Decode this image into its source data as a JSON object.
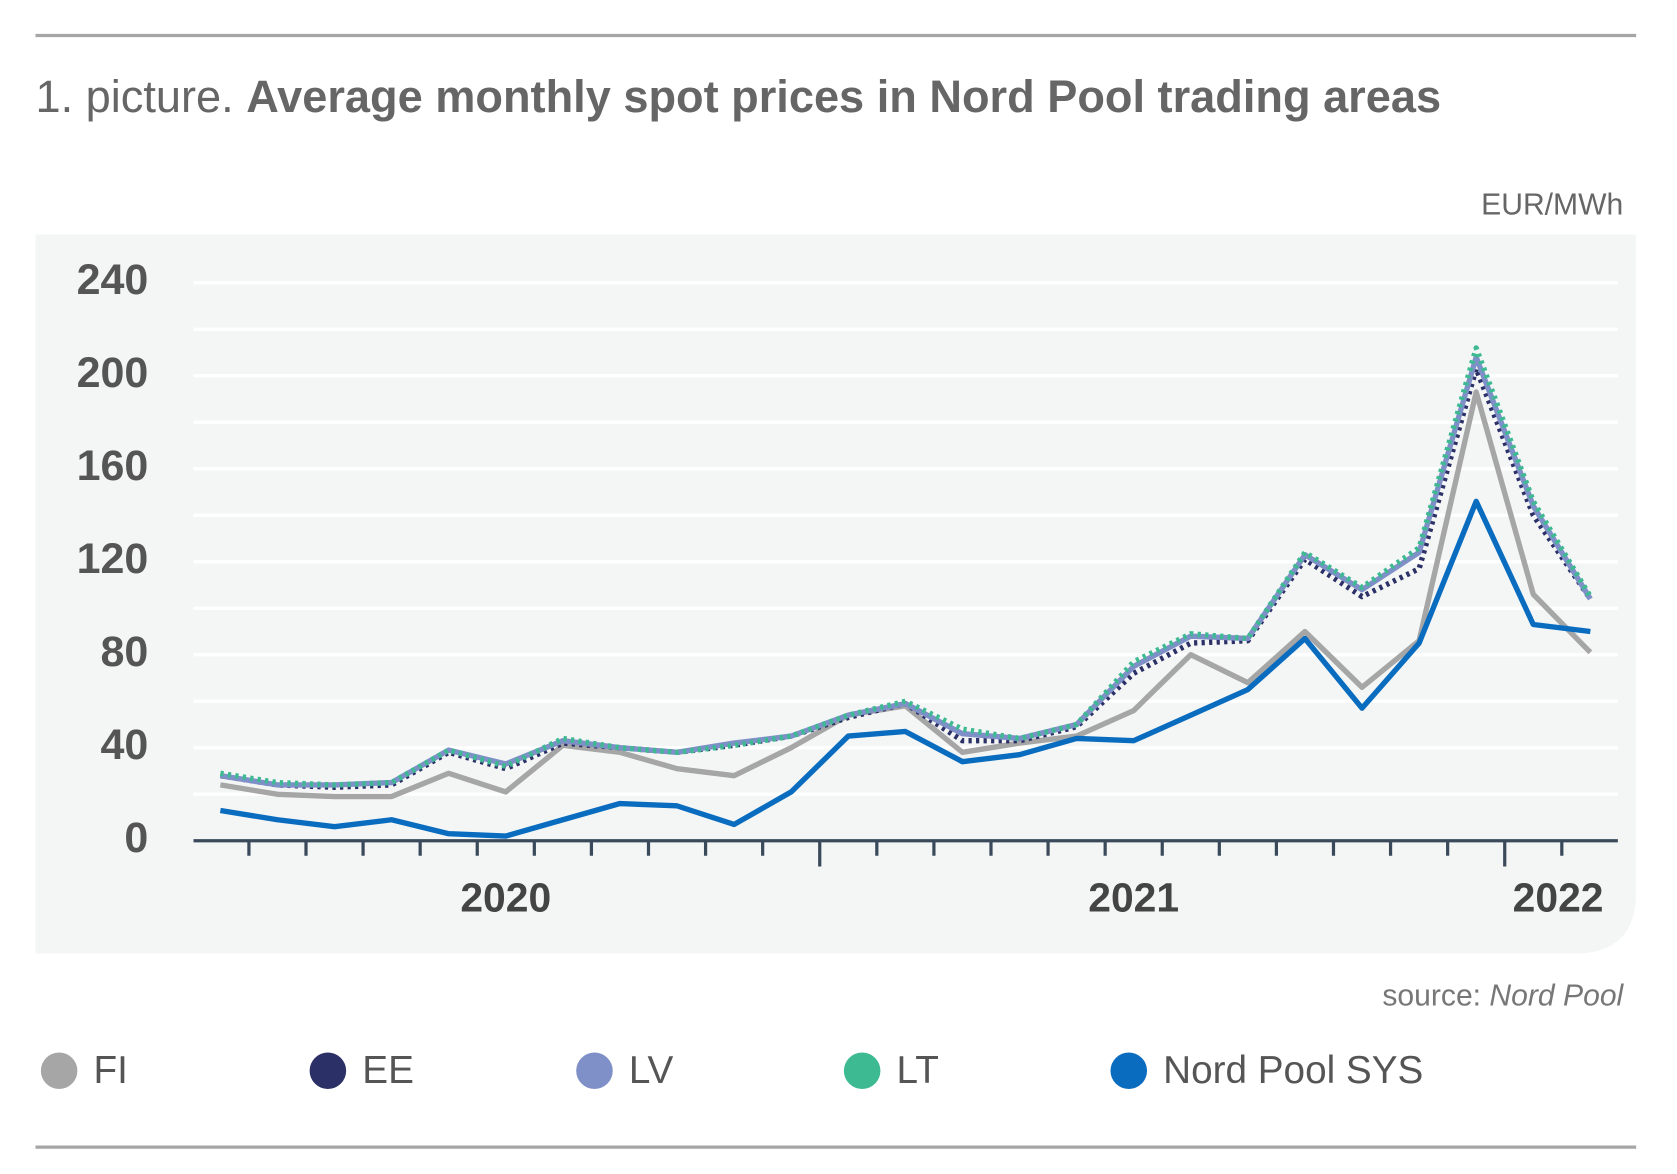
{
  "chart_data": {
    "type": "line",
    "title_prefix": "1. picture.",
    "title": "Average monthly spot prices in Nord Pool trading areas",
    "unit": "EUR/MWh",
    "source_label": "source:",
    "source": "Nord Pool",
    "categories": [
      null,
      null,
      null,
      null,
      null,
      "2020",
      null,
      null,
      null,
      null,
      null,
      null,
      null,
      null,
      null,
      null,
      "2021",
      null,
      null,
      null,
      null,
      null,
      null,
      null,
      "2022"
    ],
    "series": [
      {
        "name": "FI",
        "color": "#a6a6a6",
        "style": "solid",
        "values": [
          24,
          20,
          19,
          19,
          29,
          21,
          41,
          38,
          31,
          28,
          40,
          54,
          58,
          38,
          42,
          45,
          56,
          80,
          68,
          90,
          66,
          86,
          193,
          106,
          81
        ]
      },
      {
        "name": "EE",
        "color": "#2b3066",
        "style": "dotted",
        "values": [
          28,
          24,
          23,
          24,
          38,
          31,
          42,
          40,
          38,
          41,
          45,
          53,
          59,
          43,
          43,
          49,
          72,
          85,
          86,
          121,
          105,
          117,
          203,
          140,
          104
        ]
      },
      {
        "name": "LV",
        "color": "#7f8fc8",
        "style": "solid",
        "values": [
          28,
          24,
          24,
          25,
          39,
          33,
          43,
          40,
          38,
          42,
          45,
          54,
          59,
          46,
          44,
          50,
          75,
          88,
          87,
          123,
          108,
          124,
          208,
          144,
          104
        ]
      },
      {
        "name": "LT",
        "color": "#3dba92",
        "style": "dotted",
        "values": [
          29,
          25,
          24,
          25,
          39,
          32,
          44,
          40,
          38,
          41,
          45,
          54,
          60,
          48,
          44,
          50,
          77,
          89,
          87,
          124,
          109,
          126,
          212,
          146,
          105
        ]
      },
      {
        "name": "Nord Pool SYS",
        "color": "#0a6cbf",
        "style": "solid",
        "values": [
          13,
          9,
          6,
          9,
          3,
          2,
          9,
          16,
          15,
          7,
          21,
          45,
          47,
          34,
          37,
          44,
          43,
          54,
          65,
          87,
          57,
          85,
          146,
          93,
          90
        ]
      }
    ],
    "ylim": [
      0,
      240
    ],
    "yticks": [
      0,
      40,
      80,
      120,
      160,
      200,
      240
    ],
    "ygrid": [
      20,
      40,
      60,
      80,
      100,
      120,
      140,
      160,
      180,
      200,
      220,
      240
    ],
    "grid": true,
    "legend": "bottom"
  }
}
